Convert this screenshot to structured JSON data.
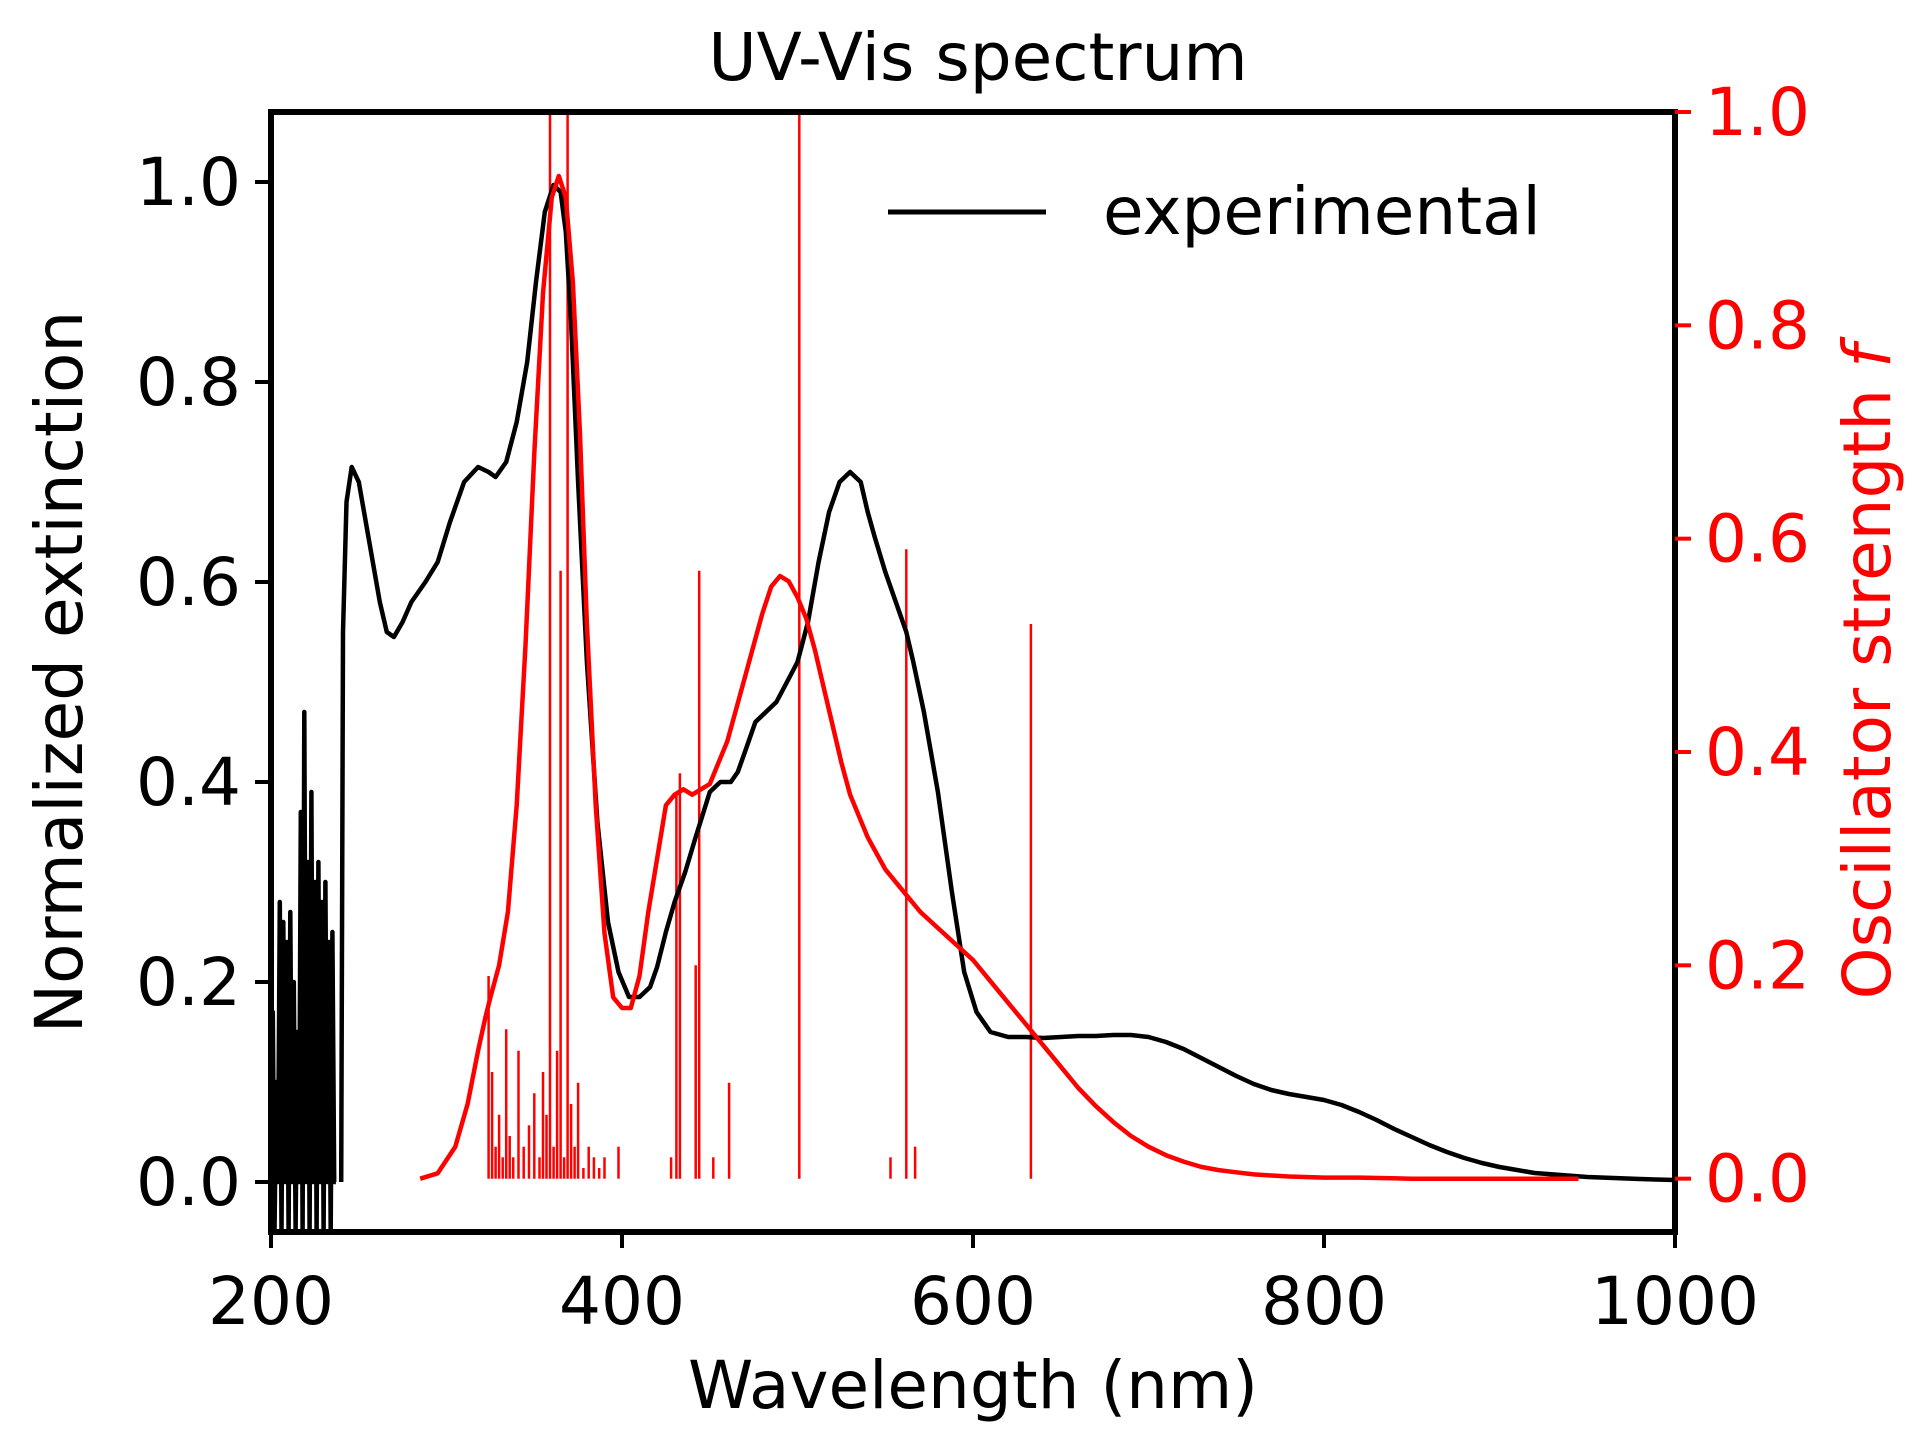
{
  "chart_data": {
    "type": "line",
    "title": "UV-Vis spectrum",
    "xlabel": "Wavelength (nm)",
    "ylabel_left": "Normalized extinction",
    "ylabel_right_prefix": "Oscillator strength ",
    "ylabel_right_symbol": "f",
    "xlim": [
      200,
      1000
    ],
    "ylim_left": [
      -0.05,
      1.07
    ],
    "ylim_right": [
      -0.05,
      1.0
    ],
    "xticks": [
      200,
      400,
      600,
      800,
      1000
    ],
    "xtick_labels": [
      "200",
      "400",
      "600",
      "800",
      "1000"
    ],
    "yticks_left": [
      0.0,
      0.2,
      0.4,
      0.6,
      0.8,
      1.0
    ],
    "ytick_labels_left": [
      "0.0",
      "0.2",
      "0.4",
      "0.6",
      "0.8",
      "1.0"
    ],
    "yticks_right": [
      0.0,
      0.2,
      0.4,
      0.6,
      0.8,
      1.0
    ],
    "ytick_labels_right": [
      "0.0",
      "0.2",
      "0.4",
      "0.6",
      "0.8",
      "1.0"
    ],
    "legend": {
      "label": "experimental",
      "position": "upper-right",
      "frame": false
    },
    "grid": false,
    "colors": {
      "experimental": "#000000",
      "theory": "#ff0000",
      "right_axis": "#ff0000"
    },
    "series": [
      {
        "name": "experimental",
        "axis": "left",
        "color": "#000000",
        "x": [
          240,
          241,
          243,
          246,
          250,
          256,
          262,
          266,
          270,
          275,
          280,
          288,
          295,
          302,
          310,
          318,
          324,
          328,
          334,
          340,
          346,
          351,
          356,
          361,
          365,
          368,
          371,
          375,
          380,
          386,
          392,
          398,
          404,
          410,
          416,
          420,
          425,
          430,
          436,
          442,
          450,
          456,
          462,
          466,
          470,
          476,
          482,
          488,
          494,
          500,
          506,
          512,
          518,
          524,
          530,
          536,
          540,
          544,
          550,
          556,
          562,
          566,
          572,
          580,
          588,
          595,
          602,
          610,
          620,
          630,
          640,
          650,
          660,
          670,
          680,
          690,
          700,
          710,
          720,
          730,
          740,
          750,
          760,
          770,
          780,
          790,
          800,
          810,
          820,
          830,
          840,
          850,
          860,
          870,
          880,
          890,
          900,
          910,
          920,
          935,
          950,
          965,
          980,
          1000
        ],
        "y": [
          0.0,
          0.55,
          0.68,
          0.715,
          0.7,
          0.64,
          0.58,
          0.55,
          0.545,
          0.56,
          0.58,
          0.6,
          0.62,
          0.66,
          0.7,
          0.715,
          0.71,
          0.705,
          0.72,
          0.76,
          0.82,
          0.9,
          0.97,
          0.997,
          0.99,
          0.95,
          0.86,
          0.7,
          0.52,
          0.36,
          0.26,
          0.21,
          0.185,
          0.185,
          0.195,
          0.215,
          0.25,
          0.28,
          0.31,
          0.345,
          0.39,
          0.4,
          0.4,
          0.41,
          0.43,
          0.46,
          0.47,
          0.48,
          0.5,
          0.52,
          0.56,
          0.62,
          0.67,
          0.7,
          0.71,
          0.7,
          0.67,
          0.645,
          0.61,
          0.58,
          0.55,
          0.52,
          0.47,
          0.39,
          0.29,
          0.21,
          0.17,
          0.15,
          0.145,
          0.145,
          0.144,
          0.145,
          0.146,
          0.146,
          0.147,
          0.147,
          0.145,
          0.14,
          0.133,
          0.124,
          0.115,
          0.106,
          0.098,
          0.092,
          0.088,
          0.085,
          0.082,
          0.077,
          0.07,
          0.062,
          0.053,
          0.045,
          0.037,
          0.03,
          0.024,
          0.019,
          0.015,
          0.012,
          0.009,
          0.007,
          0.005,
          0.004,
          0.003,
          0.002
        ]
      },
      {
        "name": "",
        "axis": "left",
        "color": "#000000",
        "note_shape": "noise",
        "x": [
          200,
          201,
          202,
          203,
          204,
          205,
          206,
          207,
          208,
          209,
          210,
          211,
          212,
          213,
          214,
          215,
          216,
          217,
          218,
          219,
          220,
          221,
          222,
          223,
          224,
          225,
          226,
          227,
          228,
          229,
          230,
          231,
          232,
          233,
          234,
          235,
          236,
          237
        ],
        "y": [
          0.0,
          0.17,
          -0.05,
          0.1,
          0.0,
          0.28,
          -0.05,
          0.26,
          0.0,
          0.24,
          -0.05,
          0.27,
          0.0,
          0.2,
          -0.05,
          0.15,
          0.0,
          0.37,
          -0.05,
          0.47,
          0.0,
          0.32,
          -0.05,
          0.39,
          0.0,
          0.3,
          -0.05,
          0.32,
          0.0,
          0.28,
          -0.05,
          0.3,
          0.0,
          0.24,
          -0.05,
          0.25,
          0.0,
          0.0
        ]
      },
      {
        "name": "",
        "axis": "right",
        "color": "#ff0000",
        "x": [
          285,
          295,
          305,
          312,
          318,
          322,
          325,
          330,
          335,
          340,
          345,
          350,
          355,
          360,
          364,
          368,
          372,
          376,
          380,
          385,
          390,
          395,
          400,
          405,
          410,
          415,
          420,
          425,
          430,
          435,
          440,
          445,
          450,
          455,
          460,
          465,
          470,
          475,
          480,
          485,
          490,
          495,
          500,
          505,
          510,
          515,
          520,
          525,
          530,
          540,
          550,
          560,
          570,
          580,
          590,
          600,
          610,
          620,
          630,
          640,
          650,
          660,
          670,
          680,
          690,
          700,
          710,
          720,
          730,
          740,
          750,
          760,
          770,
          780,
          800,
          820,
          850,
          880,
          910,
          945
        ],
        "y": [
          0.0,
          0.005,
          0.03,
          0.07,
          0.12,
          0.15,
          0.17,
          0.2,
          0.25,
          0.35,
          0.5,
          0.68,
          0.83,
          0.92,
          0.94,
          0.92,
          0.84,
          0.7,
          0.52,
          0.35,
          0.23,
          0.17,
          0.16,
          0.16,
          0.19,
          0.25,
          0.3,
          0.35,
          0.36,
          0.365,
          0.36,
          0.365,
          0.37,
          0.39,
          0.41,
          0.44,
          0.47,
          0.5,
          0.53,
          0.555,
          0.565,
          0.56,
          0.545,
          0.525,
          0.495,
          0.46,
          0.425,
          0.39,
          0.36,
          0.32,
          0.29,
          0.27,
          0.25,
          0.235,
          0.22,
          0.205,
          0.185,
          0.165,
          0.145,
          0.125,
          0.105,
          0.085,
          0.068,
          0.053,
          0.04,
          0.03,
          0.022,
          0.016,
          0.011,
          0.008,
          0.006,
          0.004,
          0.003,
          0.002,
          0.001,
          0.001,
          0.0,
          0.0,
          0.0,
          0.0
        ]
      }
    ],
    "stick_spectrum": {
      "axis": "right",
      "color": "#ff0000",
      "x": [
        324,
        326,
        328,
        330,
        332,
        334,
        336,
        338,
        341,
        344,
        347,
        350,
        353,
        355,
        357,
        359,
        361,
        363,
        365,
        367,
        369,
        371,
        373,
        375,
        378,
        381,
        384,
        387,
        390,
        398,
        428,
        431,
        433,
        442,
        444,
        452,
        461,
        553,
        562,
        567,
        633,
        501
      ],
      "f": [
        0.19,
        0.1,
        0.03,
        0.06,
        0.02,
        0.14,
        0.04,
        0.02,
        0.12,
        0.03,
        0.05,
        0.08,
        0.02,
        0.1,
        0.06,
        1.0,
        0.03,
        0.12,
        0.57,
        0.02,
        1.0,
        0.07,
        0.03,
        0.09,
        0.01,
        0.03,
        0.02,
        0.01,
        0.02,
        0.03,
        0.02,
        0.36,
        0.38,
        0.2,
        0.57,
        0.02,
        0.09,
        0.02,
        0.59,
        0.03,
        0.52,
        1.0
      ]
    }
  }
}
